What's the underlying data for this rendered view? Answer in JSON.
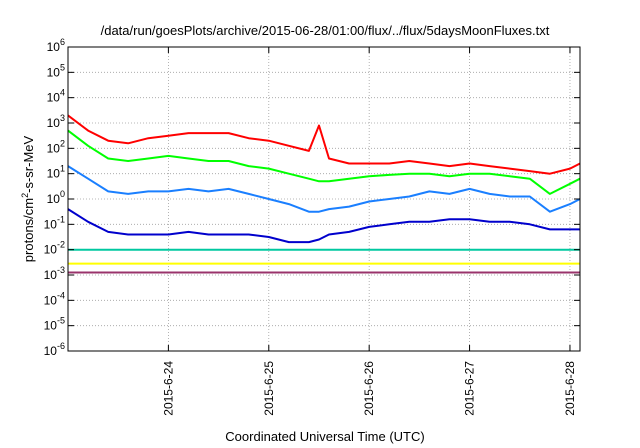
{
  "chart_data": {
    "type": "line",
    "title": "/data/run/goesPlots/archive/2015-06-28/01:00/flux/../flux/5daysMoonFluxes.txt",
    "xlabel": "Coordinated Universal Time (UTC)",
    "ylabel": "protons/cm2-s-sr-MeV",
    "ylabel_parts": {
      "base": "protons/cm",
      "sup": "2",
      "rest": "-s-sr-MeV"
    },
    "yscale": "log",
    "ylim_exp": [
      -6,
      6
    ],
    "ytick_exponents": [
      -6,
      -5,
      -4,
      -3,
      -2,
      -1,
      0,
      1,
      2,
      3,
      4,
      5,
      6
    ],
    "ytick_base": "10",
    "xlim_days": [
      23.0,
      28.1
    ],
    "x_tick_labels": [
      "2015-6-24",
      "2015-6-25",
      "2015-6-26",
      "2015-6-27",
      "2015-6-28"
    ],
    "x_tick_days": [
      24,
      25,
      26,
      27,
      28
    ],
    "grid": true,
    "legend": "none",
    "x_days": [
      23.0,
      23.2,
      23.4,
      23.6,
      23.8,
      24.0,
      24.2,
      24.4,
      24.6,
      24.8,
      25.0,
      25.2,
      25.4,
      25.5,
      25.6,
      25.8,
      26.0,
      26.2,
      26.4,
      26.6,
      26.8,
      27.0,
      27.2,
      27.4,
      27.6,
      27.8,
      28.0,
      28.1
    ],
    "series": [
      {
        "color": "#ff0000",
        "log_values": [
          3.3,
          2.7,
          2.3,
          2.2,
          2.4,
          2.5,
          2.6,
          2.6,
          2.6,
          2.4,
          2.3,
          2.1,
          1.9,
          2.9,
          1.6,
          1.4,
          1.4,
          1.4,
          1.5,
          1.4,
          1.3,
          1.4,
          1.3,
          1.2,
          1.1,
          1.0,
          1.2,
          1.4
        ]
      },
      {
        "color": "#00ff00",
        "log_values": [
          2.7,
          2.1,
          1.6,
          1.5,
          1.6,
          1.7,
          1.6,
          1.5,
          1.5,
          1.3,
          1.2,
          1.0,
          0.8,
          0.7,
          0.7,
          0.8,
          0.9,
          0.95,
          1.0,
          1.0,
          0.9,
          1.0,
          1.0,
          0.9,
          0.8,
          0.2,
          0.6,
          0.8
        ]
      },
      {
        "color": "#1a7fff",
        "log_values": [
          1.3,
          0.8,
          0.3,
          0.2,
          0.3,
          0.3,
          0.4,
          0.3,
          0.4,
          0.2,
          0.0,
          -0.2,
          -0.5,
          -0.5,
          -0.4,
          -0.3,
          -0.1,
          0.0,
          0.1,
          0.3,
          0.2,
          0.4,
          0.2,
          0.1,
          0.1,
          -0.5,
          -0.2,
          0.0
        ]
      },
      {
        "color": "#0000cc",
        "log_values": [
          -0.4,
          -0.9,
          -1.3,
          -1.4,
          -1.4,
          -1.4,
          -1.3,
          -1.4,
          -1.4,
          -1.4,
          -1.5,
          -1.7,
          -1.7,
          -1.6,
          -1.4,
          -1.3,
          -1.1,
          -1.0,
          -0.9,
          -0.9,
          -0.8,
          -0.8,
          -0.9,
          -0.9,
          -1.0,
          -1.2,
          -1.2,
          -1.2
        ]
      },
      {
        "color": "#00c8a0",
        "log_values": [
          -2.0,
          -2.0,
          -2.0,
          -2.0,
          -2.0,
          -2.0,
          -2.0,
          -2.0,
          -2.0,
          -2.0,
          -2.0,
          -2.0,
          -2.0,
          -2.0,
          -2.0,
          -2.0,
          -2.0,
          -2.0,
          -2.0,
          -2.0,
          -2.0,
          -2.0,
          -2.0,
          -2.0,
          -2.0,
          -2.0,
          -2.0,
          -2.0
        ]
      },
      {
        "color": "#ffff00",
        "log_values": [
          -2.55,
          -2.55,
          -2.55,
          -2.55,
          -2.55,
          -2.55,
          -2.55,
          -2.55,
          -2.55,
          -2.55,
          -2.55,
          -2.55,
          -2.55,
          -2.55,
          -2.55,
          -2.55,
          -2.55,
          -2.55,
          -2.55,
          -2.55,
          -2.55,
          -2.55,
          -2.55,
          -2.55,
          -2.55,
          -2.55,
          -2.55,
          -2.55
        ]
      },
      {
        "color": "#99336b",
        "log_values": [
          -2.9,
          -2.9,
          -2.9,
          -2.9,
          -2.9,
          -2.9,
          -2.9,
          -2.9,
          -2.9,
          -2.9,
          -2.9,
          -2.9,
          -2.9,
          -2.9,
          -2.9,
          -2.9,
          -2.9,
          -2.9,
          -2.9,
          -2.9,
          -2.9,
          -2.9,
          -2.9,
          -2.9,
          -2.9,
          -2.9,
          -2.9,
          -2.9
        ]
      }
    ]
  }
}
